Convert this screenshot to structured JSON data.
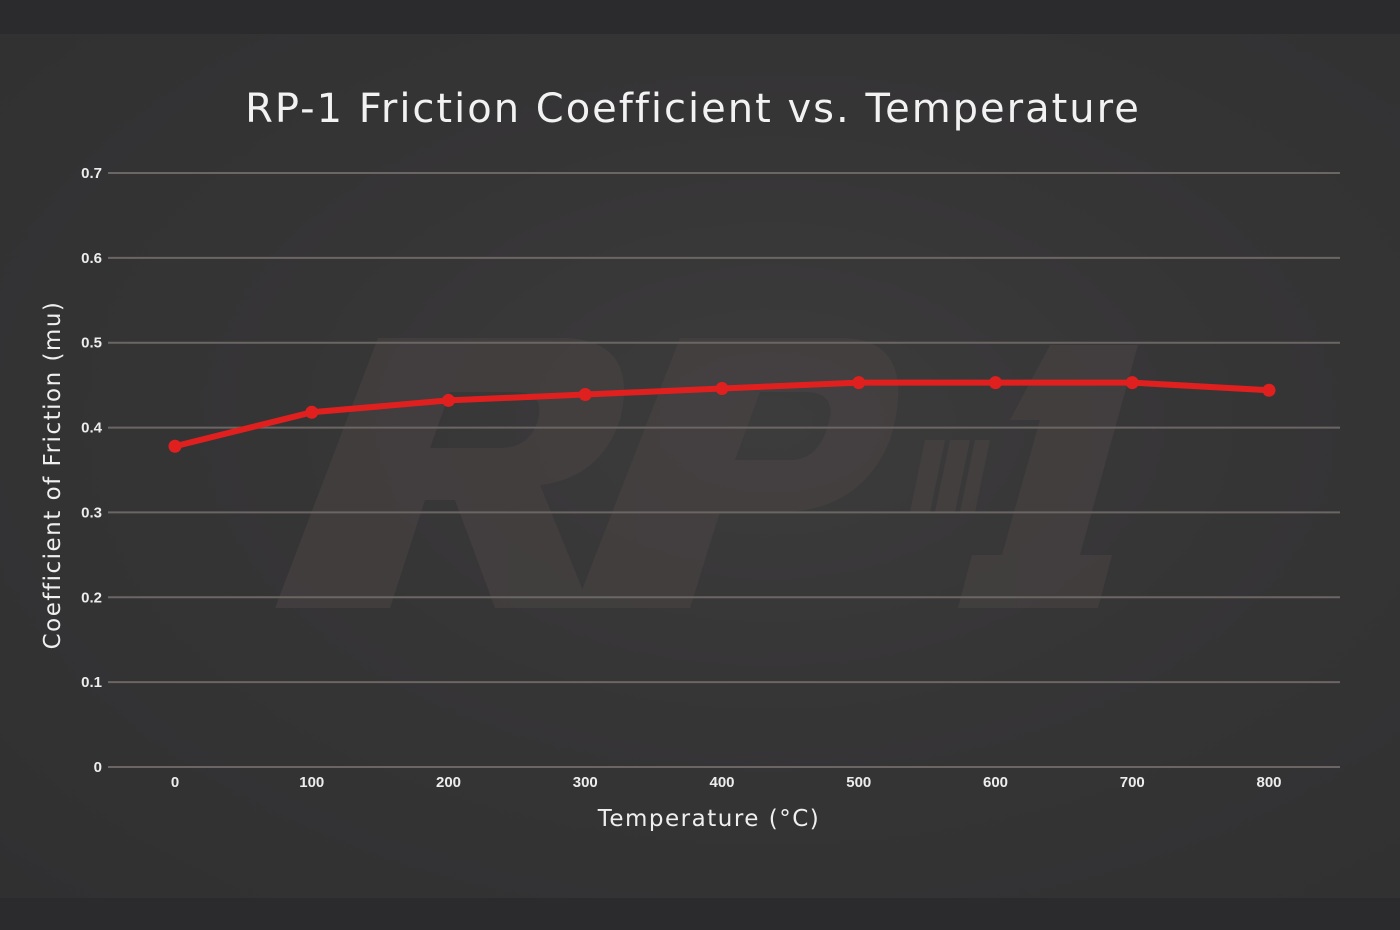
{
  "chart_data": {
    "type": "line",
    "title": "RP-1 Friction Coefficient vs. Temperature",
    "xlabel": "Temperature (°C)",
    "ylabel": "Coefficient of Friction (mu)",
    "x": [
      0,
      100,
      200,
      300,
      400,
      500,
      600,
      700,
      800
    ],
    "x_tick_labels": [
      "0",
      "100",
      "200",
      "300",
      "400",
      "500",
      "600",
      "700",
      "800"
    ],
    "y_tick_labels": [
      "0",
      "0.1",
      "0.2",
      "0.3",
      "0.4",
      "0.5",
      "0.6",
      "0.7"
    ],
    "y_ticks": [
      0,
      0.1,
      0.2,
      0.3,
      0.4,
      0.5,
      0.6,
      0.7
    ],
    "ylim": [
      0,
      0.7
    ],
    "xlim": [
      -50,
      850
    ],
    "grid": true,
    "legend": "none",
    "series": [
      {
        "values": [
          0.378,
          0.418,
          0.432,
          0.439,
          0.446,
          0.453,
          0.453,
          0.453,
          0.444
        ],
        "color": "#e0201f"
      }
    ],
    "watermark": "RP-1",
    "colors": {
      "background": "#333234",
      "gridline": "#6b6663",
      "line": "#e0201f",
      "text": "#efefef"
    }
  }
}
